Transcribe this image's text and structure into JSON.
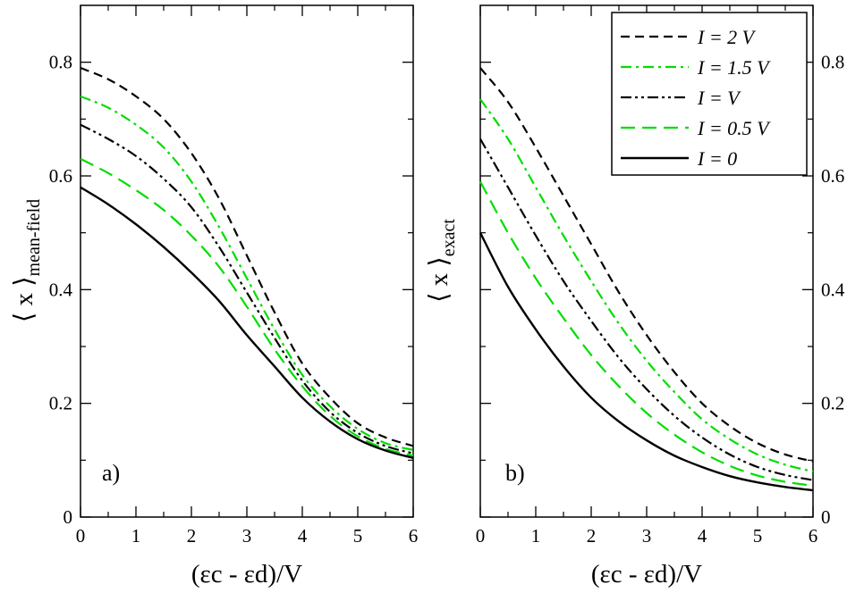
{
  "chart_data": [
    {
      "type": "line",
      "panel": "a)",
      "xlabel": "(εc - εd)/V",
      "ylabel": "⟨ x ⟩mean-field",
      "ylabel_main": "⟨ x ⟩",
      "ylabel_sub": "mean-field",
      "xlim": [
        0,
        6
      ],
      "ylim": [
        0,
        0.9
      ],
      "xticks": [
        0,
        1,
        2,
        3,
        4,
        5,
        6
      ],
      "xtick_labels": [
        "0",
        "1",
        "2",
        "3",
        "4",
        "5",
        "6"
      ],
      "yticks": [
        0,
        0.2,
        0.4,
        0.6,
        0.8
      ],
      "ytick_labels": [
        "0",
        "0.2",
        "0.4",
        "0.6",
        "0.8"
      ],
      "x": [
        0,
        0.5,
        1,
        1.5,
        2,
        2.5,
        3,
        3.5,
        4,
        4.5,
        5,
        5.5,
        6
      ],
      "series": [
        {
          "name": "I = 2 V",
          "color": "#000000",
          "dash": "dash",
          "values": [
            0.79,
            0.77,
            0.74,
            0.7,
            0.64,
            0.56,
            0.46,
            0.36,
            0.27,
            0.21,
            0.165,
            0.14,
            0.125
          ]
        },
        {
          "name": "I = 1.5 V",
          "color": "#00dd00",
          "dash": "dashdot",
          "values": [
            0.74,
            0.72,
            0.69,
            0.65,
            0.59,
            0.51,
            0.42,
            0.33,
            0.25,
            0.195,
            0.155,
            0.13,
            0.118
          ]
        },
        {
          "name": "I = V",
          "color": "#000000",
          "dash": "dashdotdot",
          "values": [
            0.69,
            0.665,
            0.635,
            0.595,
            0.545,
            0.475,
            0.395,
            0.315,
            0.24,
            0.185,
            0.148,
            0.125,
            0.112
          ]
        },
        {
          "name": "I = 0.5 V",
          "color": "#00dd00",
          "dash": "longdash",
          "values": [
            0.63,
            0.605,
            0.575,
            0.54,
            0.495,
            0.44,
            0.37,
            0.295,
            0.23,
            0.178,
            0.142,
            0.12,
            0.108
          ]
        },
        {
          "name": "I = 0",
          "color": "#000000",
          "dash": "solid",
          "values": [
            0.58,
            0.55,
            0.515,
            0.475,
            0.43,
            0.38,
            0.32,
            0.265,
            0.21,
            0.168,
            0.137,
            0.117,
            0.104
          ]
        }
      ]
    },
    {
      "type": "line",
      "panel": "b)",
      "xlabel": "(εc - εd)/V",
      "ylabel": "⟨ x ⟩exact",
      "ylabel_main": "⟨ x ⟩",
      "ylabel_sub": "exact",
      "xlim": [
        0,
        6
      ],
      "ylim": [
        0,
        0.9
      ],
      "xticks": [
        0,
        1,
        2,
        3,
        4,
        5,
        6
      ],
      "xtick_labels": [
        "0",
        "1",
        "2",
        "3",
        "4",
        "5",
        "6"
      ],
      "yticks": [
        0,
        0.2,
        0.4,
        0.6,
        0.8
      ],
      "ytick_labels": [
        "0",
        "0.2",
        "0.4",
        "0.6",
        "0.8"
      ],
      "x": [
        0,
        0.5,
        1,
        1.5,
        2,
        2.5,
        3,
        3.5,
        4,
        4.5,
        5,
        5.5,
        6
      ],
      "series": [
        {
          "name": "I = 2 V",
          "color": "#000000",
          "dash": "dash",
          "values": [
            0.79,
            0.73,
            0.65,
            0.565,
            0.48,
            0.395,
            0.32,
            0.255,
            0.2,
            0.16,
            0.13,
            0.11,
            0.098
          ]
        },
        {
          "name": "I = 1.5 V",
          "color": "#00dd00",
          "dash": "dashdot",
          "values": [
            0.735,
            0.665,
            0.58,
            0.495,
            0.415,
            0.34,
            0.275,
            0.22,
            0.172,
            0.137,
            0.11,
            0.092,
            0.08
          ]
        },
        {
          "name": "I = V",
          "color": "#000000",
          "dash": "dashdotdot",
          "values": [
            0.665,
            0.58,
            0.495,
            0.415,
            0.345,
            0.28,
            0.225,
            0.178,
            0.14,
            0.11,
            0.088,
            0.074,
            0.065
          ]
        },
        {
          "name": "I = 0.5 V",
          "color": "#00dd00",
          "dash": "longdash",
          "values": [
            0.59,
            0.5,
            0.42,
            0.35,
            0.285,
            0.23,
            0.183,
            0.145,
            0.114,
            0.09,
            0.073,
            0.062,
            0.055
          ]
        },
        {
          "name": "I = 0",
          "color": "#000000",
          "dash": "solid",
          "values": [
            0.5,
            0.405,
            0.33,
            0.265,
            0.21,
            0.168,
            0.135,
            0.108,
            0.088,
            0.072,
            0.061,
            0.053,
            0.047
          ]
        }
      ]
    }
  ],
  "legend": {
    "placement": "top-right of panel b",
    "entries": [
      "I = 2 V",
      "I = 1.5 V",
      "I = V",
      "I = 0.5 V",
      "I = 0"
    ]
  }
}
